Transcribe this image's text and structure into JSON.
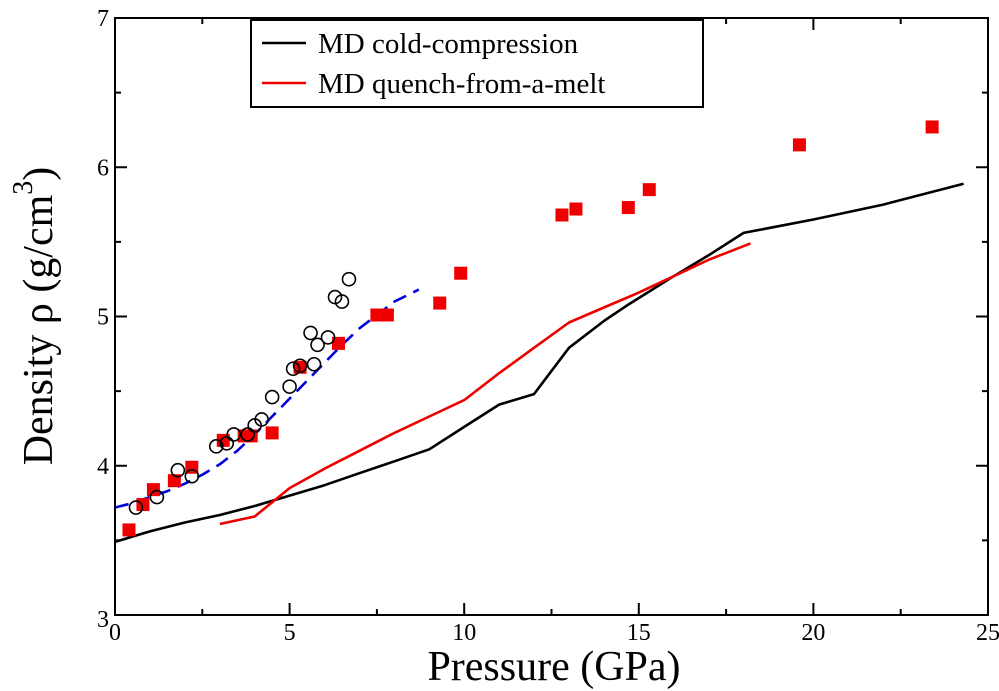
{
  "chart_data": {
    "type": "scatter",
    "title": "",
    "xlabel": "Pressure (GPa)",
    "ylabel_parts": [
      "Density ρ (g/cm",
      "3",
      ")"
    ],
    "xlim": [
      0,
      25
    ],
    "ylim": [
      3,
      7
    ],
    "x_ticks": [
      0,
      5,
      10,
      15,
      20,
      25
    ],
    "y_ticks": [
      3,
      4,
      5,
      6,
      7
    ],
    "x_tick_labels": [
      "0",
      "5",
      "10",
      "15",
      "20",
      "25"
    ],
    "y_tick_labels": [
      "3",
      "4",
      "5",
      "6",
      "7"
    ],
    "grid": false,
    "legend_position": "top",
    "series": [
      {
        "name": "MD cold-compression",
        "kind": "line",
        "color": "#000000",
        "points": [
          [
            0,
            3.49
          ],
          [
            1,
            3.56
          ],
          [
            2,
            3.62
          ],
          [
            3,
            3.67
          ],
          [
            4,
            3.73
          ],
          [
            5,
            3.8
          ],
          [
            6,
            3.87
          ],
          [
            7,
            3.95
          ],
          [
            8,
            4.03
          ],
          [
            9,
            4.11
          ],
          [
            10,
            4.26
          ],
          [
            11,
            4.41
          ],
          [
            12,
            4.48
          ],
          [
            13,
            4.79
          ],
          [
            14,
            4.97
          ],
          [
            14.7,
            5.08
          ],
          [
            16,
            5.27
          ],
          [
            17,
            5.41
          ],
          [
            18,
            5.56
          ],
          [
            20,
            5.65
          ],
          [
            22,
            5.75
          ],
          [
            24.3,
            5.89
          ]
        ]
      },
      {
        "name": "MD quench-from-a-melt",
        "kind": "line",
        "color": "#ee0000",
        "points": [
          [
            3,
            3.61
          ],
          [
            4,
            3.66
          ],
          [
            5,
            3.85
          ],
          [
            6,
            3.98
          ],
          [
            7,
            4.1
          ],
          [
            8,
            4.22
          ],
          [
            9,
            4.33
          ],
          [
            10,
            4.44
          ],
          [
            11,
            4.62
          ],
          [
            12,
            4.79
          ],
          [
            13,
            4.96
          ],
          [
            14,
            5.06
          ],
          [
            15,
            5.16
          ],
          [
            16,
            5.27
          ],
          [
            17,
            5.38
          ],
          [
            18.2,
            5.49
          ]
        ]
      },
      {
        "kind": "dashed",
        "color": "#0000dd",
        "points": [
          [
            0,
            3.72
          ],
          [
            0.5,
            3.75
          ],
          [
            1,
            3.79
          ],
          [
            1.5,
            3.83
          ],
          [
            2,
            3.88
          ],
          [
            2.5,
            3.94
          ],
          [
            3,
            4.01
          ],
          [
            3.5,
            4.1
          ],
          [
            4,
            4.21
          ],
          [
            4.5,
            4.33
          ],
          [
            5,
            4.45
          ],
          [
            5.5,
            4.57
          ],
          [
            6,
            4.69
          ],
          [
            6.5,
            4.81
          ],
          [
            7,
            4.92
          ],
          [
            7.5,
            5.01
          ],
          [
            8,
            5.1
          ],
          [
            8.7,
            5.18
          ]
        ]
      },
      {
        "kind": "marker-square",
        "color": "#ee0000",
        "points": [
          [
            0.4,
            3.57
          ],
          [
            0.8,
            3.74
          ],
          [
            1.1,
            3.84
          ],
          [
            1.7,
            3.9
          ],
          [
            2.2,
            3.99
          ],
          [
            3.1,
            4.17
          ],
          [
            3.7,
            4.2
          ],
          [
            3.9,
            4.2
          ],
          [
            4.5,
            4.22
          ],
          [
            5.3,
            4.66
          ],
          [
            6.4,
            4.82
          ],
          [
            7.5,
            5.01
          ],
          [
            7.8,
            5.01
          ],
          [
            9.3,
            5.09
          ],
          [
            9.9,
            5.29
          ],
          [
            12.8,
            5.68
          ],
          [
            13.2,
            5.72
          ],
          [
            14.7,
            5.73
          ],
          [
            15.3,
            5.85
          ],
          [
            19.6,
            6.15
          ],
          [
            23.4,
            6.27
          ]
        ]
      },
      {
        "kind": "marker-circle",
        "color": "#000000",
        "points": [
          [
            0.6,
            3.72
          ],
          [
            1.2,
            3.79
          ],
          [
            1.8,
            3.97
          ],
          [
            2.2,
            3.93
          ],
          [
            2.9,
            4.13
          ],
          [
            3.2,
            4.15
          ],
          [
            3.4,
            4.21
          ],
          [
            3.8,
            4.21
          ],
          [
            4.0,
            4.27
          ],
          [
            4.2,
            4.31
          ],
          [
            4.5,
            4.46
          ],
          [
            5.0,
            4.53
          ],
          [
            5.1,
            4.65
          ],
          [
            5.3,
            4.67
          ],
          [
            5.6,
            4.89
          ],
          [
            5.7,
            4.68
          ],
          [
            5.8,
            4.81
          ],
          [
            6.1,
            4.86
          ],
          [
            6.3,
            5.13
          ],
          [
            6.5,
            5.1
          ],
          [
            6.7,
            5.25
          ]
        ]
      }
    ]
  }
}
